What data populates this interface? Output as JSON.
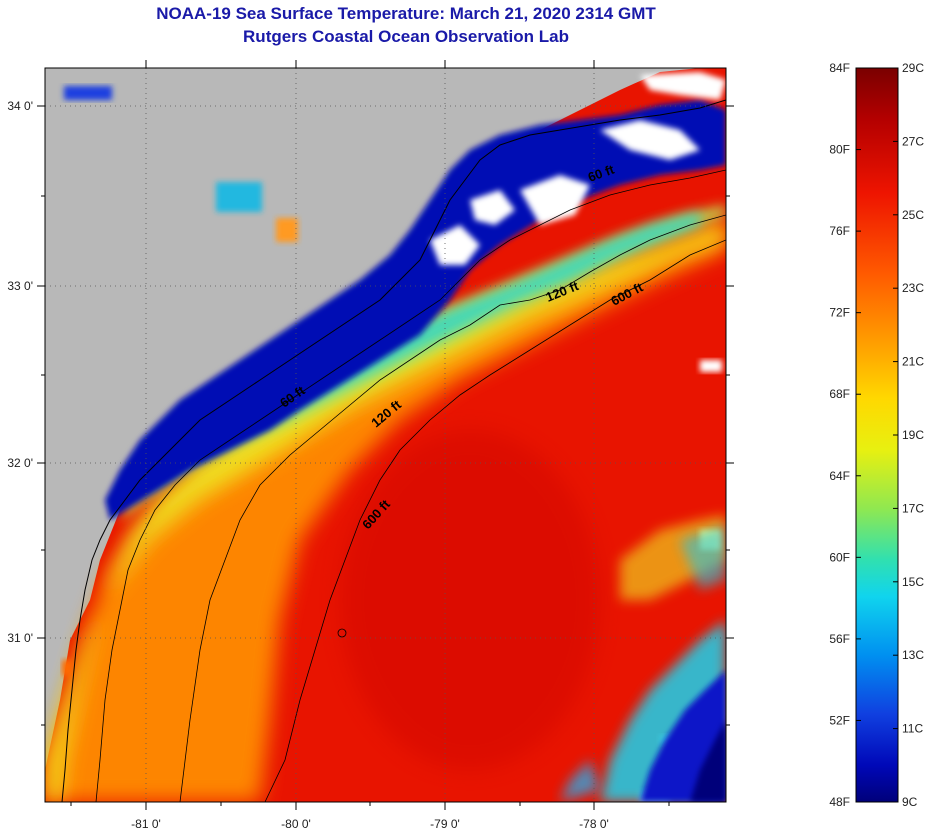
{
  "header": {
    "title": "NOAA-19 Sea Surface Temperature:  March 21, 2020 2314 GMT",
    "subtitle": "Rutgers Coastal Ocean Observation Lab"
  },
  "map": {
    "lon_labels": [
      "-81 0'",
      "-80 0'",
      "-79 0'",
      "-78 0'"
    ],
    "lat_labels": [
      "34 0'",
      "33 0'",
      "32 0'",
      "31 0'"
    ],
    "contours": [
      {
        "label": "60 ft"
      },
      {
        "label": "120 ft"
      },
      {
        "label": "600 ft"
      },
      {
        "label": "60 ft"
      },
      {
        "label": "120 ft"
      },
      {
        "label": "600 ft"
      }
    ]
  },
  "colorbar": {
    "fahrenheit": [
      "84F",
      "80F",
      "76F",
      "72F",
      "68F",
      "64F",
      "60F",
      "56F",
      "52F",
      "48F"
    ],
    "celsius": [
      "29C",
      "27C",
      "25C",
      "23C",
      "21C",
      "19C",
      "17C",
      "15C",
      "13C",
      "11C",
      "9C"
    ],
    "colors": [
      "#7a0000",
      "#c80000",
      "#ff2a00",
      "#ff7a00",
      "#ffc400",
      "#f4f400",
      "#a8f040",
      "#40e8a0",
      "#10d8e8",
      "#0090f0",
      "#1040e0",
      "#0000b0",
      "#00007a"
    ]
  }
}
